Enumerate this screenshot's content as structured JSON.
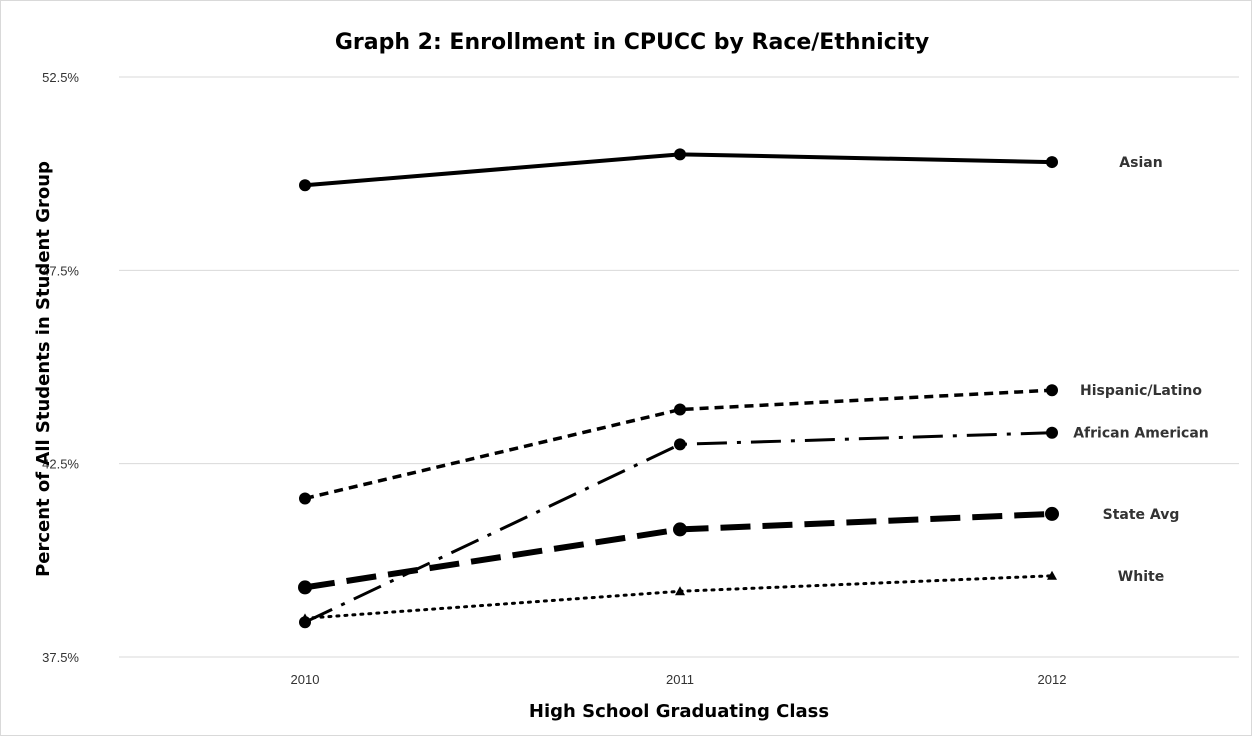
{
  "chart_data": {
    "type": "line",
    "title": "Graph 2: Enrollment in CPUCC by Race/Ethnicity",
    "xlabel": "High School Graduating Class",
    "ylabel": "Percent of All Students in Student Group",
    "x": [
      "2010",
      "2011",
      "2012"
    ],
    "ylim": [
      37.5,
      52.5
    ],
    "yticks": [
      "37.5%",
      "42.5%",
      "47.5%",
      "52.5%"
    ],
    "grid": true,
    "series": [
      {
        "name": "Asian",
        "values": [
          49.7,
          50.5,
          50.3
        ],
        "style": "solid",
        "marker": "circle"
      },
      {
        "name": "Hispanic/Latino",
        "values": [
          41.6,
          43.9,
          44.4
        ],
        "style": "short-dash",
        "marker": "circle"
      },
      {
        "name": "African American",
        "values": [
          38.4,
          43.0,
          43.3
        ],
        "style": "dash-dot",
        "marker": "circle"
      },
      {
        "name": "State Avg",
        "values": [
          39.3,
          40.8,
          41.2
        ],
        "style": "long-dash",
        "marker": "circle"
      },
      {
        "name": "White",
        "values": [
          38.5,
          39.2,
          39.6
        ],
        "style": "dotted",
        "marker": "triangle"
      }
    ]
  }
}
